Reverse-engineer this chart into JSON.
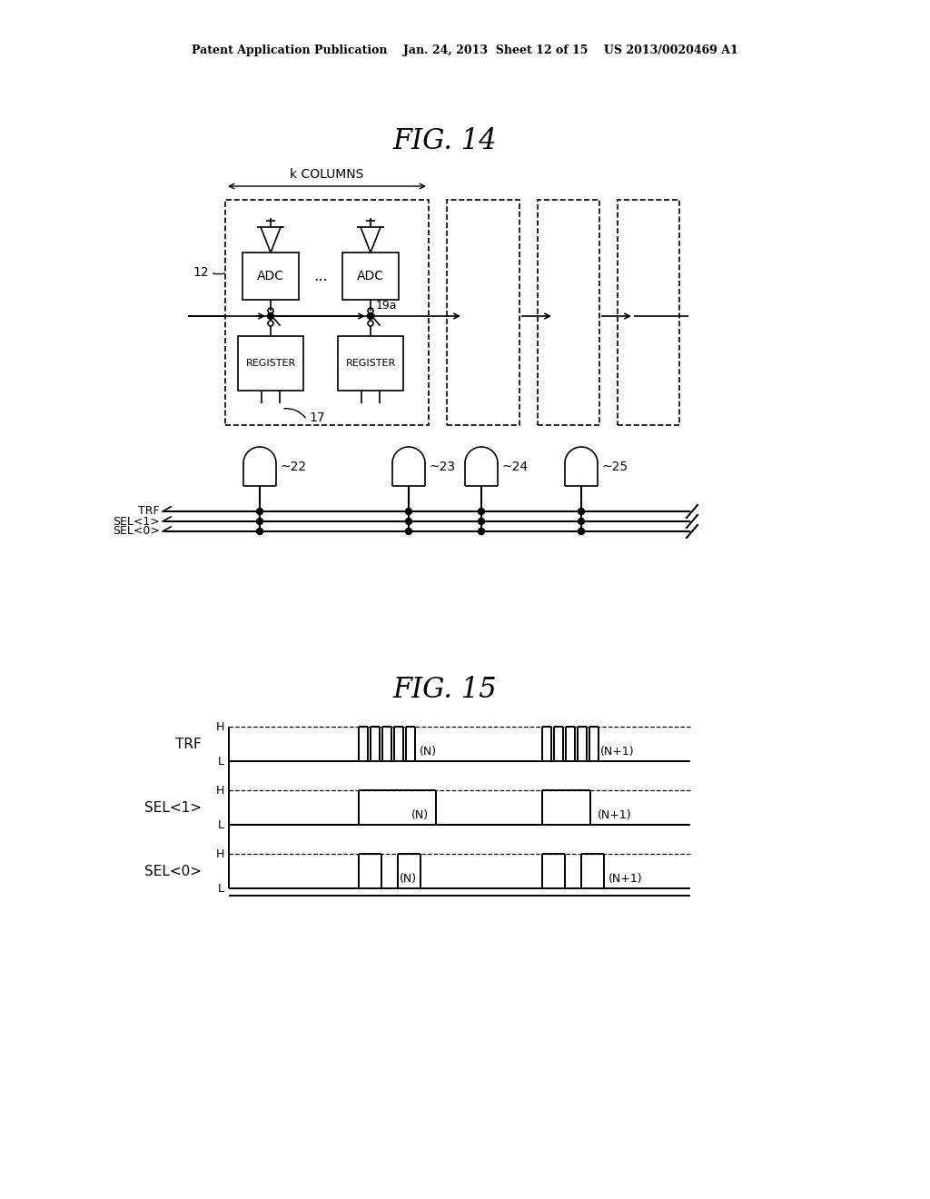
{
  "header": "Patent Application Publication    Jan. 24, 2013  Sheet 12 of 15    US 2013/0020469 A1",
  "fig14_title": "FIG. 14",
  "fig15_title": "FIG. 15",
  "bg": "#ffffff",
  "lc": "#000000"
}
